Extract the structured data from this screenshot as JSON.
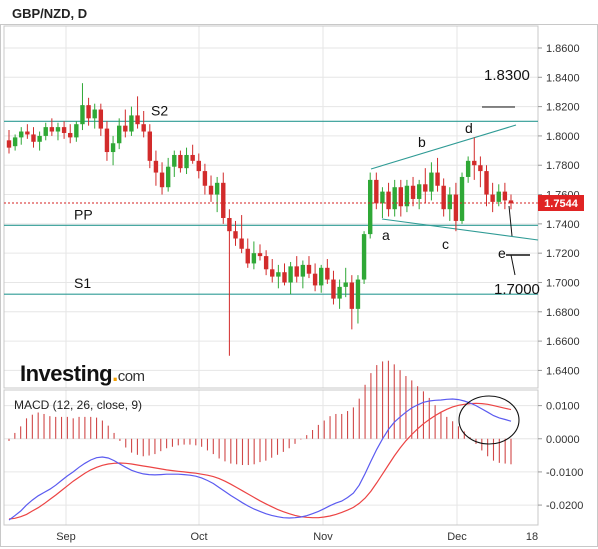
{
  "chart_data": [
    {
      "type": "candlestick",
      "title": "GBP/NZD, D",
      "last_price": "1.7544",
      "ylim": [
        1.628,
        1.875
      ],
      "yticks": [
        "1.8600",
        "1.8400",
        "1.8200",
        "1.8000",
        "1.7800",
        "1.7600",
        "1.7400",
        "1.7200",
        "1.7000",
        "1.6800",
        "1.6600",
        "1.6400"
      ],
      "xticks": [
        "Sep",
        "Oct",
        "Nov",
        "Dec",
        "18"
      ],
      "levels": [
        {
          "name": "S2",
          "value": 1.81
        },
        {
          "name": "PP",
          "value": 1.739
        },
        {
          "name": "S1",
          "value": 1.692
        }
      ],
      "annotations": [
        "1.8300",
        "1.7000",
        "a",
        "b",
        "c",
        "d",
        "e"
      ],
      "ohlc": [
        [
          1.797,
          1.804,
          1.788,
          1.792
        ],
        [
          1.793,
          1.801,
          1.79,
          1.799
        ],
        [
          1.799,
          1.806,
          1.794,
          1.803
        ],
        [
          1.803,
          1.808,
          1.798,
          1.801
        ],
        [
          1.801,
          1.806,
          1.792,
          1.796
        ],
        [
          1.796,
          1.803,
          1.79,
          1.8
        ],
        [
          1.8,
          1.809,
          1.797,
          1.806
        ],
        [
          1.806,
          1.812,
          1.8,
          1.803
        ],
        [
          1.803,
          1.809,
          1.797,
          1.806
        ],
        [
          1.806,
          1.81,
          1.798,
          1.802
        ],
        [
          1.802,
          1.808,
          1.795,
          1.799
        ],
        [
          1.799,
          1.81,
          1.796,
          1.808
        ],
        [
          1.808,
          1.836,
          1.804,
          1.821
        ],
        [
          1.821,
          1.826,
          1.807,
          1.812
        ],
        [
          1.812,
          1.822,
          1.805,
          1.818
        ],
        [
          1.818,
          1.822,
          1.8,
          1.805
        ],
        [
          1.805,
          1.81,
          1.783,
          1.789
        ],
        [
          1.789,
          1.8,
          1.78,
          1.795
        ],
        [
          1.795,
          1.812,
          1.791,
          1.807
        ],
        [
          1.807,
          1.818,
          1.799,
          1.803
        ],
        [
          1.803,
          1.82,
          1.8,
          1.814
        ],
        [
          1.814,
          1.827,
          1.805,
          1.808
        ],
        [
          1.808,
          1.817,
          1.799,
          1.803
        ],
        [
          1.803,
          1.808,
          1.778,
          1.783
        ],
        [
          1.783,
          1.79,
          1.766,
          1.775
        ],
        [
          1.775,
          1.782,
          1.76,
          1.765
        ],
        [
          1.765,
          1.785,
          1.762,
          1.779
        ],
        [
          1.779,
          1.79,
          1.772,
          1.787
        ],
        [
          1.787,
          1.79,
          1.775,
          1.778
        ],
        [
          1.778,
          1.792,
          1.774,
          1.787
        ],
        [
          1.787,
          1.794,
          1.781,
          1.783
        ],
        [
          1.783,
          1.788,
          1.771,
          1.776
        ],
        [
          1.776,
          1.781,
          1.76,
          1.766
        ],
        [
          1.766,
          1.773,
          1.755,
          1.76
        ],
        [
          1.76,
          1.772,
          1.748,
          1.768
        ],
        [
          1.768,
          1.775,
          1.74,
          1.744
        ],
        [
          1.744,
          1.75,
          1.65,
          1.735
        ],
        [
          1.735,
          1.742,
          1.725,
          1.73
        ],
        [
          1.73,
          1.746,
          1.72,
          1.723
        ],
        [
          1.723,
          1.73,
          1.71,
          1.713
        ],
        [
          1.713,
          1.728,
          1.709,
          1.72
        ],
        [
          1.72,
          1.726,
          1.715,
          1.718
        ],
        [
          1.718,
          1.722,
          1.705,
          1.709
        ],
        [
          1.709,
          1.716,
          1.7,
          1.704
        ],
        [
          1.704,
          1.712,
          1.696,
          1.707
        ],
        [
          1.707,
          1.713,
          1.698,
          1.7
        ],
        [
          1.7,
          1.714,
          1.692,
          1.711
        ],
        [
          1.711,
          1.718,
          1.7,
          1.704
        ],
        [
          1.704,
          1.715,
          1.696,
          1.712
        ],
        [
          1.712,
          1.718,
          1.703,
          1.706
        ],
        [
          1.706,
          1.713,
          1.694,
          1.698
        ],
        [
          1.698,
          1.712,
          1.693,
          1.71
        ],
        [
          1.71,
          1.716,
          1.699,
          1.702
        ],
        [
          1.702,
          1.708,
          1.685,
          1.689
        ],
        [
          1.689,
          1.702,
          1.682,
          1.697
        ],
        [
          1.697,
          1.71,
          1.69,
          1.7
        ],
        [
          1.7,
          1.705,
          1.668,
          1.682
        ],
        [
          1.682,
          1.705,
          1.672,
          1.702
        ],
        [
          1.702,
          1.735,
          1.699,
          1.733
        ],
        [
          1.733,
          1.775,
          1.73,
          1.77
        ],
        [
          1.77,
          1.775,
          1.75,
          1.754
        ],
        [
          1.754,
          1.765,
          1.744,
          1.762
        ],
        [
          1.762,
          1.768,
          1.745,
          1.75
        ],
        [
          1.75,
          1.77,
          1.745,
          1.765
        ],
        [
          1.765,
          1.77,
          1.745,
          1.752
        ],
        [
          1.752,
          1.77,
          1.748,
          1.766
        ],
        [
          1.766,
          1.772,
          1.752,
          1.757
        ],
        [
          1.757,
          1.77,
          1.75,
          1.767
        ],
        [
          1.767,
          1.778,
          1.754,
          1.762
        ],
        [
          1.762,
          1.782,
          1.756,
          1.775
        ],
        [
          1.775,
          1.785,
          1.762,
          1.766
        ],
        [
          1.766,
          1.771,
          1.745,
          1.75
        ],
        [
          1.75,
          1.765,
          1.742,
          1.76
        ],
        [
          1.76,
          1.768,
          1.735,
          1.742
        ],
        [
          1.742,
          1.775,
          1.74,
          1.772
        ],
        [
          1.772,
          1.786,
          1.768,
          1.783
        ],
        [
          1.783,
          1.799,
          1.77,
          1.78
        ],
        [
          1.78,
          1.786,
          1.765,
          1.776
        ],
        [
          1.776,
          1.78,
          1.752,
          1.76
        ],
        [
          1.76,
          1.768,
          1.748,
          1.755
        ],
        [
          1.755,
          1.767,
          1.752,
          1.762
        ],
        [
          1.762,
          1.768,
          1.75,
          1.756
        ],
        [
          1.756,
          1.76,
          1.75,
          1.754
        ]
      ]
    },
    {
      "type": "line",
      "title": "MACD (12, 26, close, 9)",
      "ylim": [
        -0.0245,
        0.0135
      ],
      "yticks": [
        "0.0100",
        "0.0000",
        "-0.0100",
        "-0.0200"
      ],
      "series": [
        {
          "name": "MACD",
          "color": "#5b5bf0"
        },
        {
          "name": "Signal",
          "color": "#ec4444"
        },
        {
          "name": "Histogram",
          "color": "#d04848"
        }
      ],
      "macd": [
        -0.0245,
        -0.0232,
        -0.0218,
        -0.02,
        -0.0185,
        -0.0172,
        -0.0162,
        -0.0152,
        -0.014,
        -0.0126,
        -0.0112,
        -0.01,
        -0.0086,
        -0.0074,
        -0.0064,
        -0.0057,
        -0.0055,
        -0.0058,
        -0.0066,
        -0.0076,
        -0.0086,
        -0.0095,
        -0.0101,
        -0.0106,
        -0.0108,
        -0.0109,
        -0.0108,
        -0.0107,
        -0.0107,
        -0.0107,
        -0.0108,
        -0.011,
        -0.0113,
        -0.0118,
        -0.0126,
        -0.0135,
        -0.0147,
        -0.0159,
        -0.0171,
        -0.0182,
        -0.0193,
        -0.0203,
        -0.0212,
        -0.0219,
        -0.0226,
        -0.0231,
        -0.0235,
        -0.0238,
        -0.0239,
        -0.0238,
        -0.0236,
        -0.0232,
        -0.0226,
        -0.0219,
        -0.0211,
        -0.0202,
        -0.0194,
        -0.0188,
        -0.0177,
        -0.0164,
        -0.014,
        -0.0105,
        -0.0068,
        -0.0032,
        0.0,
        0.0028,
        0.005,
        0.0066,
        0.008,
        0.0093,
        0.0102,
        0.011,
        0.0114,
        0.0116,
        0.0117,
        0.0119,
        0.012,
        0.0118,
        0.0114,
        0.0108,
        0.01,
        0.009,
        0.008,
        0.007,
        0.0063,
        0.0058,
        0.0053
      ],
      "signal": [
        -0.0242,
        -0.024,
        -0.0235,
        -0.0228,
        -0.0218,
        -0.0208,
        -0.0196,
        -0.0183,
        -0.017,
        -0.0156,
        -0.0142,
        -0.0128,
        -0.0116,
        -0.0104,
        -0.0094,
        -0.0086,
        -0.008,
        -0.0076,
        -0.0074,
        -0.0073,
        -0.0074,
        -0.0076,
        -0.0079,
        -0.0082,
        -0.0085,
        -0.0088,
        -0.0091,
        -0.0094,
        -0.0096,
        -0.0098,
        -0.01,
        -0.0102,
        -0.0104,
        -0.0107,
        -0.011,
        -0.0114,
        -0.012,
        -0.0128,
        -0.0137,
        -0.0147,
        -0.0157,
        -0.0167,
        -0.0177,
        -0.0187,
        -0.0196,
        -0.0205,
        -0.0213,
        -0.022,
        -0.0226,
        -0.0231,
        -0.0235,
        -0.0237,
        -0.0238,
        -0.0238,
        -0.0236,
        -0.0233,
        -0.0228,
        -0.0222,
        -0.0215,
        -0.0207,
        -0.0195,
        -0.0179,
        -0.0158,
        -0.0133,
        -0.0106,
        -0.0079,
        -0.0052,
        -0.0028,
        -0.0006,
        0.0013,
        0.003,
        0.0045,
        0.0058,
        0.007,
        0.008,
        0.0089,
        0.0096,
        0.0101,
        0.0104,
        0.0106,
        0.0107,
        0.0106,
        0.0104,
        0.01,
        0.0096,
        0.0092,
        0.0088
      ]
    }
  ]
}
